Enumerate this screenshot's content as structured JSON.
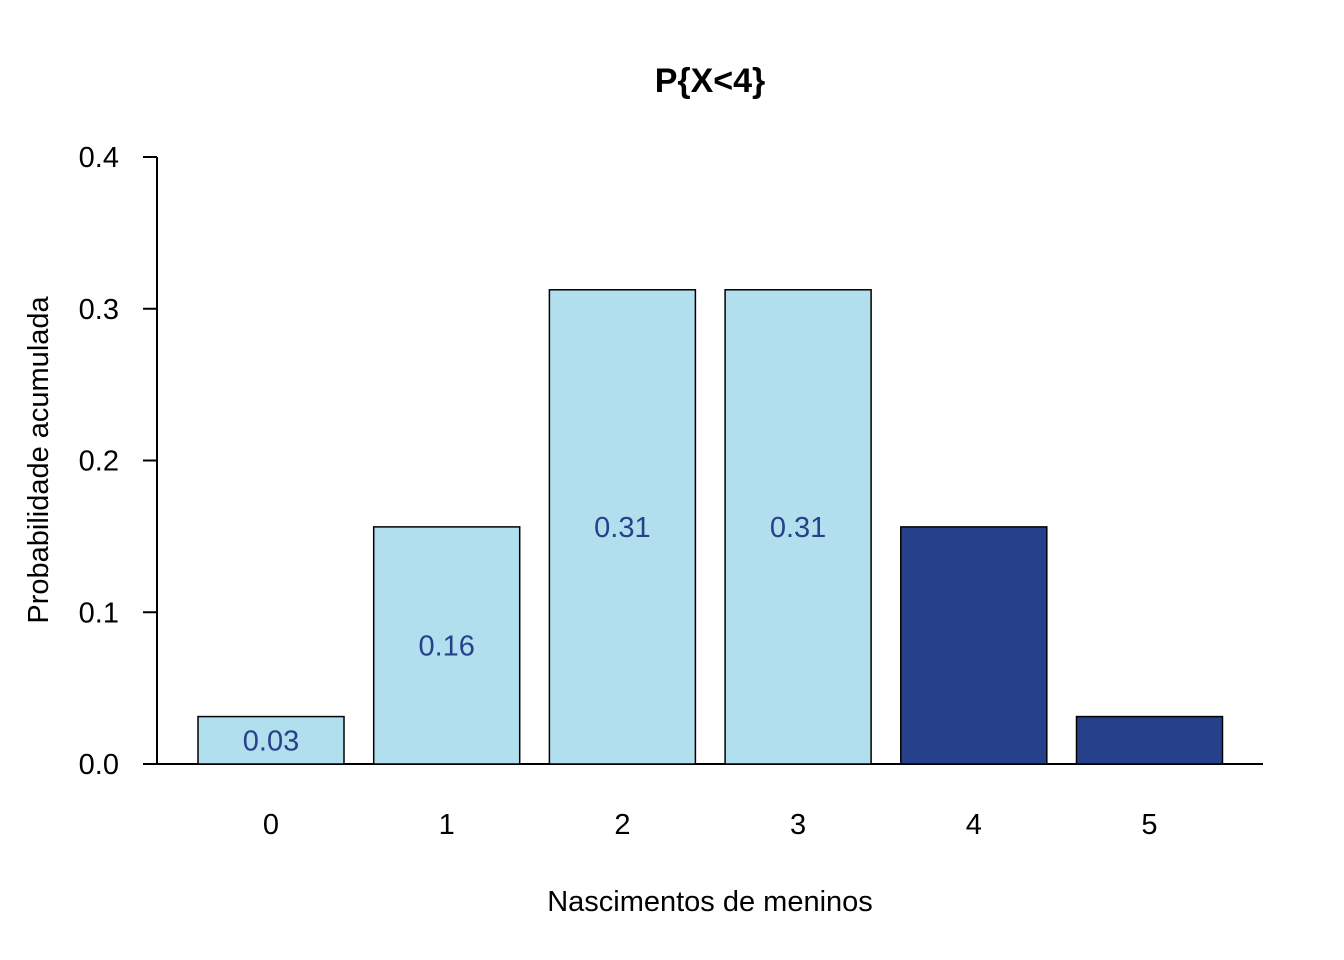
{
  "chart_data": {
    "type": "bar",
    "title": "P{X<4}",
    "xlabel": "Nascimentos de meninos",
    "ylabel": "Probabilidade acumulada",
    "categories": [
      "0",
      "1",
      "2",
      "3",
      "4",
      "5"
    ],
    "values": [
      0.03125,
      0.15625,
      0.3125,
      0.3125,
      0.15625,
      0.03125
    ],
    "data_labels": [
      "0.03",
      "0.16",
      "0.31",
      "0.31",
      "",
      ""
    ],
    "highlighted": [
      true,
      true,
      true,
      true,
      false,
      false
    ],
    "yticks": [
      "0.0",
      "0.1",
      "0.2",
      "0.3",
      "0.4"
    ],
    "ylim": [
      0,
      0.4
    ],
    "grid": false,
    "legend": "none",
    "colors": {
      "highlight": "#b2dfed",
      "rest": "#27408b",
      "data_label": "#27408b",
      "bar_border": "#000000"
    }
  }
}
